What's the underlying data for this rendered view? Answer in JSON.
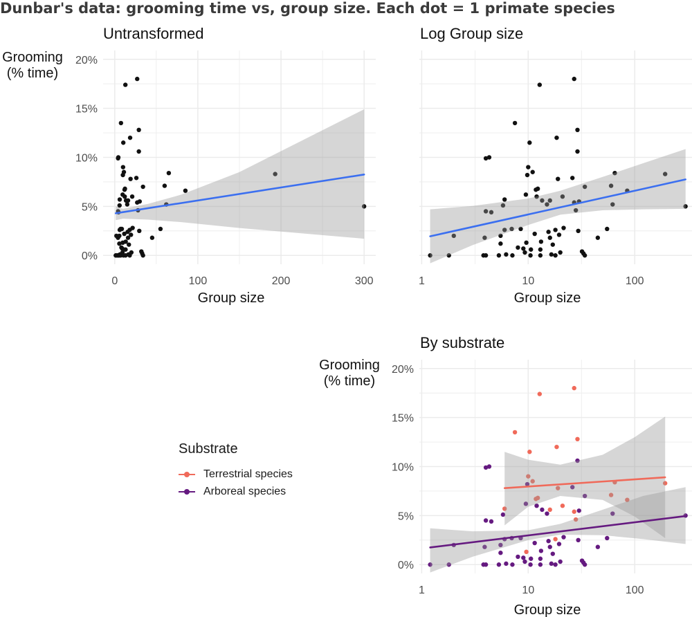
{
  "figure_title": "Dunbar's data: grooming time vs, group size. Each dot = 1 primate species",
  "colors": {
    "point": "#111111",
    "fit_line": "#3b6ff0",
    "band": "#999999",
    "terrestrial": "#f06a5a",
    "arboreal": "#651a80",
    "grid": "#ebebeb"
  },
  "legend": {
    "title": "Substrate",
    "items": [
      {
        "label": "Terrestrial species",
        "color": "#f06a5a"
      },
      {
        "label": "Arboreal species",
        "color": "#651a80"
      }
    ]
  },
  "species": [
    {
      "x": 1.2,
      "y": 0.0,
      "s": "A"
    },
    {
      "x": 1.8,
      "y": 0.0,
      "s": "A"
    },
    {
      "x": 2.0,
      "y": 2.0,
      "s": "A"
    },
    {
      "x": 3.8,
      "y": 0.0,
      "s": "A"
    },
    {
      "x": 4.0,
      "y": 0.0,
      "s": "A"
    },
    {
      "x": 3.9,
      "y": 1.8,
      "s": "A"
    },
    {
      "x": 4.0,
      "y": 4.5,
      "s": "A"
    },
    {
      "x": 4.0,
      "y": 9.9,
      "s": "A"
    },
    {
      "x": 4.3,
      "y": 10.0,
      "s": "A"
    },
    {
      "x": 4.5,
      "y": 4.4,
      "s": "A"
    },
    {
      "x": 5.3,
      "y": 0.0,
      "s": "A"
    },
    {
      "x": 5.5,
      "y": 2.0,
      "s": "A"
    },
    {
      "x": 5.5,
      "y": 1.2,
      "s": "A"
    },
    {
      "x": 5.8,
      "y": 5.1,
      "s": "A"
    },
    {
      "x": 6.0,
      "y": 5.7,
      "s": "T"
    },
    {
      "x": 6.0,
      "y": 2.6,
      "s": "A"
    },
    {
      "x": 6.2,
      "y": 0.1,
      "s": "A"
    },
    {
      "x": 7.0,
      "y": 2.7,
      "s": "A"
    },
    {
      "x": 7.1,
      "y": 0.0,
      "s": "A"
    },
    {
      "x": 7.5,
      "y": 13.5,
      "s": "T"
    },
    {
      "x": 8.0,
      "y": 0.8,
      "s": "A"
    },
    {
      "x": 8.5,
      "y": 2.7,
      "s": "A"
    },
    {
      "x": 9.0,
      "y": 0.7,
      "s": "A"
    },
    {
      "x": 9.3,
      "y": 0.3,
      "s": "A"
    },
    {
      "x": 9.5,
      "y": 6.2,
      "s": "A"
    },
    {
      "x": 9.6,
      "y": 1.3,
      "s": "T"
    },
    {
      "x": 9.8,
      "y": 8.2,
      "s": "A"
    },
    {
      "x": 10.0,
      "y": 9.0,
      "s": "T"
    },
    {
      "x": 10.3,
      "y": 11.5,
      "s": "T"
    },
    {
      "x": 10.5,
      "y": 0.0,
      "s": "A"
    },
    {
      "x": 10.6,
      "y": 0.6,
      "s": "A"
    },
    {
      "x": 11.0,
      "y": 8.5,
      "s": "T"
    },
    {
      "x": 11.5,
      "y": 2.2,
      "s": "A"
    },
    {
      "x": 11.8,
      "y": 6.7,
      "s": "T"
    },
    {
      "x": 12.0,
      "y": 6.0,
      "s": "A"
    },
    {
      "x": 12.3,
      "y": 6.8,
      "s": "T"
    },
    {
      "x": 12.8,
      "y": 17.4,
      "s": "T"
    },
    {
      "x": 13.0,
      "y": 0.0,
      "s": "A"
    },
    {
      "x": 13.0,
      "y": 0.6,
      "s": "A"
    },
    {
      "x": 13.2,
      "y": 1.4,
      "s": "A"
    },
    {
      "x": 13.5,
      "y": 5.6,
      "s": "A"
    },
    {
      "x": 15.0,
      "y": 5.2,
      "s": "A"
    },
    {
      "x": 15.5,
      "y": 2.4,
      "s": "A"
    },
    {
      "x": 16.0,
      "y": 5.6,
      "s": "T"
    },
    {
      "x": 16.0,
      "y": 1.8,
      "s": "A"
    },
    {
      "x": 16.5,
      "y": 0.1,
      "s": "A"
    },
    {
      "x": 17.0,
      "y": 1.1,
      "s": "A"
    },
    {
      "x": 18.0,
      "y": 2.6,
      "s": "T"
    },
    {
      "x": 18.0,
      "y": 0.0,
      "s": "A"
    },
    {
      "x": 18.5,
      "y": 12.0,
      "s": "T"
    },
    {
      "x": 19.0,
      "y": 7.8,
      "s": "T"
    },
    {
      "x": 19.5,
      "y": 2.1,
      "s": "A"
    },
    {
      "x": 20.0,
      "y": 0.3,
      "s": "A"
    },
    {
      "x": 21.0,
      "y": 6.0,
      "s": "T"
    },
    {
      "x": 21.5,
      "y": 2.8,
      "s": "A"
    },
    {
      "x": 26.0,
      "y": 7.9,
      "s": "A"
    },
    {
      "x": 27.0,
      "y": 18.0,
      "s": "T"
    },
    {
      "x": 27.0,
      "y": 5.4,
      "s": "T"
    },
    {
      "x": 28.0,
      "y": 4.6,
      "s": "T"
    },
    {
      "x": 29.0,
      "y": 12.8,
      "s": "T"
    },
    {
      "x": 29.0,
      "y": 10.6,
      "s": "A"
    },
    {
      "x": 29.5,
      "y": 2.5,
      "s": "A"
    },
    {
      "x": 30.0,
      "y": 5.5,
      "s": "A"
    },
    {
      "x": 32.0,
      "y": 0.4,
      "s": "A"
    },
    {
      "x": 33.0,
      "y": 0.2,
      "s": "A"
    },
    {
      "x": 34.0,
      "y": 7.0,
      "s": "A"
    },
    {
      "x": 34.0,
      "y": 0.0,
      "s": "A"
    },
    {
      "x": 45.0,
      "y": 1.8,
      "s": "A"
    },
    {
      "x": 55.0,
      "y": 2.7,
      "s": "A"
    },
    {
      "x": 60.0,
      "y": 7.1,
      "s": "T"
    },
    {
      "x": 62.0,
      "y": 5.2,
      "s": "A"
    },
    {
      "x": 65.0,
      "y": 8.4,
      "s": "T"
    },
    {
      "x": 85.0,
      "y": 6.6,
      "s": "T"
    },
    {
      "x": 193.0,
      "y": 8.3,
      "s": "T"
    },
    {
      "x": 300.0,
      "y": 5.0,
      "s": "A"
    }
  ],
  "chart_data": [
    {
      "type": "scatter",
      "title": "Untransformed",
      "xlabel": "Group size",
      "ylabel": "Grooming\n(% time)",
      "xlim": [
        -14,
        314
      ],
      "ylim": [
        -0.9,
        20.9
      ],
      "x_scale": "linear",
      "xticks": [
        {
          "v": 0,
          "label": "0"
        },
        {
          "v": 100,
          "label": "100"
        },
        {
          "v": 200,
          "label": "200"
        },
        {
          "v": 300,
          "label": "300"
        }
      ],
      "yticks": [
        {
          "v": 0,
          "label": "0%"
        },
        {
          "v": 5,
          "label": "5%"
        },
        {
          "v": 10,
          "label": "10%"
        },
        {
          "v": 15,
          "label": "15%"
        },
        {
          "v": 20,
          "label": "20%"
        }
      ],
      "show_y_tick_labels": true,
      "grid": true,
      "fits": [
        {
          "x0": 1.2,
          "x1": 300,
          "y0": 4.3,
          "y1": 8.25,
          "color": "#3b6ff0",
          "band": {
            "x": [
              1.2,
              10,
              40,
              80,
              150,
              300
            ],
            "lower": [
              3.6,
              3.75,
              3.65,
              3.4,
              2.8,
              1.7
            ],
            "upper": [
              5.0,
              4.75,
              5.25,
              6.2,
              8.5,
              14.9
            ]
          }
        }
      ]
    },
    {
      "type": "scatter",
      "title": "Log Group size",
      "xlabel": "Group size",
      "ylabel": "",
      "xlim": [
        0.95,
        345
      ],
      "ylim": [
        -0.9,
        20.9
      ],
      "x_scale": "log10",
      "xticks": [
        {
          "v": 1,
          "label": "1"
        },
        {
          "v": 10,
          "label": "10"
        },
        {
          "v": 100,
          "label": "100"
        }
      ],
      "yticks": [
        {
          "v": 0,
          "label": ""
        },
        {
          "v": 5,
          "label": ""
        },
        {
          "v": 10,
          "label": ""
        },
        {
          "v": 15,
          "label": ""
        },
        {
          "v": 20,
          "label": ""
        }
      ],
      "show_y_tick_labels": false,
      "grid": true,
      "fits": [
        {
          "x0": 1.2,
          "x1": 300,
          "y0": 1.95,
          "y1": 7.75,
          "color": "#3b6ff0",
          "band": {
            "x": [
              1.2,
              3,
              10,
              20,
              50,
              120,
              300
            ],
            "lower": [
              -0.8,
              1.05,
              3.1,
              4.15,
              4.6,
              4.7,
              4.75
            ],
            "upper": [
              4.7,
              5.05,
              5.8,
              6.6,
              8.0,
              9.4,
              10.85
            ]
          }
        }
      ]
    },
    {
      "type": "scatter",
      "title": "By substrate",
      "xlabel": "Group size",
      "ylabel": "Grooming\n(% time)",
      "xlim": [
        0.95,
        345
      ],
      "ylim": [
        -0.9,
        20.9
      ],
      "x_scale": "log10",
      "xticks": [
        {
          "v": 1,
          "label": "1"
        },
        {
          "v": 10,
          "label": "10"
        },
        {
          "v": 100,
          "label": "100"
        }
      ],
      "yticks": [
        {
          "v": 0,
          "label": "0%"
        },
        {
          "v": 5,
          "label": "5%"
        },
        {
          "v": 10,
          "label": "10%"
        },
        {
          "v": 15,
          "label": "15%"
        },
        {
          "v": 20,
          "label": "20%"
        }
      ],
      "show_y_tick_labels": true,
      "grid": true,
      "color_by": "substrate",
      "fits": [
        {
          "name": "Terrestrial species",
          "x0": 6,
          "x1": 193,
          "y0": 7.8,
          "y1": 8.9,
          "color": "#f06a5a",
          "band": {
            "x": [
              6,
              10,
              20,
              50,
              100,
              193
            ],
            "lower": [
              4.0,
              5.9,
              7.0,
              6.6,
              4.9,
              2.7
            ],
            "upper": [
              11.5,
              10.7,
              10.2,
              11.2,
              13.0,
              15.1
            ]
          }
        },
        {
          "name": "Arboreal species",
          "x0": 1.2,
          "x1": 300,
          "y0": 1.75,
          "y1": 4.95,
          "color": "#651a80",
          "band": {
            "x": [
              1.2,
              3,
              10,
              20,
              50,
              120,
              300
            ],
            "lower": [
              -0.8,
              0.8,
              2.5,
              3.05,
              3.0,
              2.6,
              2.1
            ],
            "upper": [
              3.7,
              3.4,
              3.5,
              4.15,
              5.6,
              7.0,
              7.9
            ]
          }
        }
      ]
    }
  ]
}
